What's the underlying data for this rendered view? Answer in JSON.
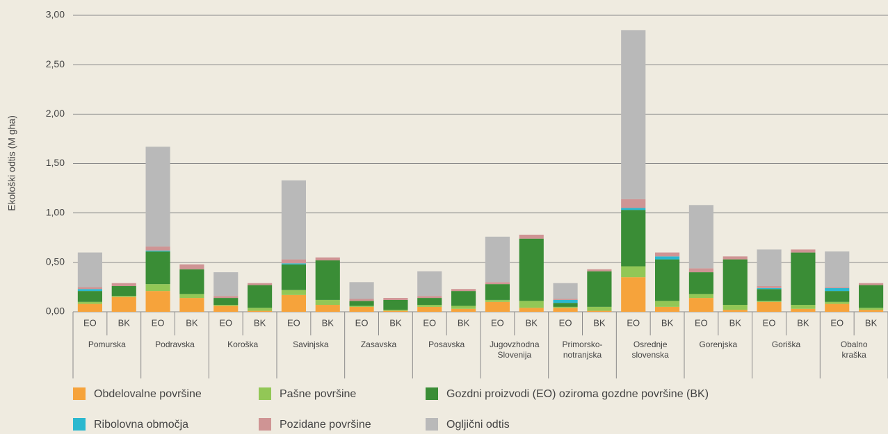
{
  "chart_data": {
    "type": "stacked-bar",
    "ylabel": "Ekološki odtis (M gha)",
    "categories": [
      "EO",
      "BK",
      "EO",
      "BK",
      "EO",
      "BK",
      "EO",
      "BK",
      "EO",
      "BK",
      "EO",
      "BK",
      "EO",
      "BK",
      "EO",
      "BK",
      "EO",
      "BK",
      "EO",
      "BK",
      "EO",
      "BK",
      "EO",
      "BK"
    ],
    "groups": [
      [
        "Pomurska"
      ],
      [
        "Podravska"
      ],
      [
        "Koroška"
      ],
      [
        "Savinjska"
      ],
      [
        "Zasavska"
      ],
      [
        "Posavska"
      ],
      [
        "Jugovzhodna",
        "Slovenija"
      ],
      [
        "Primorsko-",
        "notranjska"
      ],
      [
        "Osrednje",
        "slovenska"
      ],
      [
        "Gorenjska"
      ],
      [
        "Goriška"
      ],
      [
        "Obalno",
        "kraška"
      ]
    ],
    "ylim": [
      0,
      3
    ],
    "yticks": [
      {
        "value": 0,
        "label": "0,00"
      },
      {
        "value": 0.5,
        "label": "0,50"
      },
      {
        "value": 1,
        "label": "1,00"
      },
      {
        "value": 1.5,
        "label": "1,50"
      },
      {
        "value": 2,
        "label": "2,00"
      },
      {
        "value": 2.5,
        "label": "2,50"
      },
      {
        "value": 3,
        "label": "3,00"
      }
    ],
    "grid": true,
    "series": [
      {
        "name": "Obdelovalne površine",
        "color": "#f6a33b",
        "values": [
          0.08,
          0.15,
          0.21,
          0.14,
          0.06,
          0.01,
          0.17,
          0.07,
          0.05,
          0.01,
          0.05,
          0.03,
          0.1,
          0.04,
          0.04,
          0.01,
          0.35,
          0.05,
          0.14,
          0.02,
          0.1,
          0.03,
          0.08,
          0.02
        ]
      },
      {
        "name": "Pašne površine",
        "color": "#92c756",
        "values": [
          0.02,
          0.01,
          0.07,
          0.04,
          0.01,
          0.03,
          0.05,
          0.05,
          0.01,
          0.01,
          0.02,
          0.03,
          0.02,
          0.07,
          0.01,
          0.04,
          0.11,
          0.06,
          0.04,
          0.05,
          0.01,
          0.04,
          0.02,
          0.02
        ]
      },
      {
        "name": "Gozdni proizvodi (EO) oziroma gozdne površine (BK)",
        "color": "#3a8d36",
        "values": [
          0.11,
          0.1,
          0.33,
          0.25,
          0.07,
          0.23,
          0.26,
          0.4,
          0.05,
          0.1,
          0.07,
          0.15,
          0.16,
          0.63,
          0.04,
          0.36,
          0.57,
          0.42,
          0.22,
          0.46,
          0.12,
          0.53,
          0.11,
          0.23
        ]
      },
      {
        "name": "Ribolovna območja",
        "color": "#2bb8cf",
        "values": [
          0.02,
          0,
          0.01,
          0,
          0,
          0,
          0.01,
          0,
          0,
          0,
          0,
          0,
          0,
          0,
          0.03,
          0,
          0.02,
          0.03,
          0,
          0,
          0.01,
          0,
          0.03,
          0
        ]
      },
      {
        "name": "Pozidane površine",
        "color": "#cf9494",
        "values": [
          0.02,
          0.03,
          0.04,
          0.05,
          0.02,
          0.02,
          0.04,
          0.03,
          0.02,
          0.02,
          0.02,
          0.02,
          0.02,
          0.04,
          0.01,
          0.02,
          0.09,
          0.04,
          0.04,
          0.03,
          0.02,
          0.03,
          0.01,
          0.02
        ]
      },
      {
        "name": "Ogljični odtis",
        "color": "#b9b9b9",
        "values": [
          0.35,
          0,
          1.01,
          0,
          0.24,
          0,
          0.8,
          0,
          0.17,
          0,
          0.25,
          0,
          0.46,
          0,
          0.16,
          0,
          1.71,
          0,
          0.64,
          0,
          0.37,
          0,
          0.36,
          0
        ]
      }
    ]
  }
}
